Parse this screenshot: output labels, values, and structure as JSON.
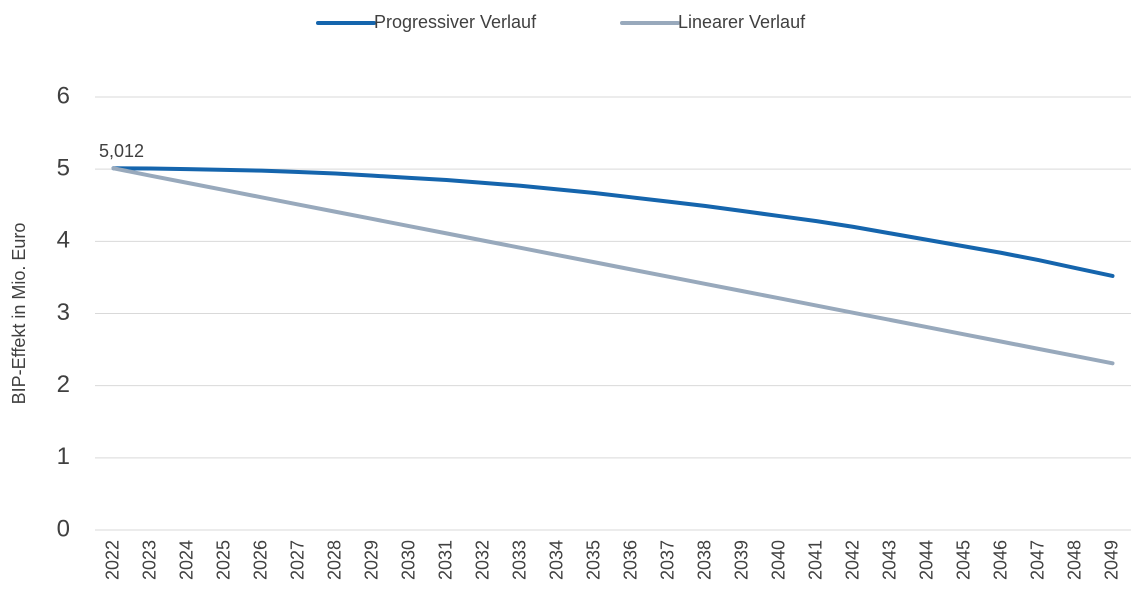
{
  "chart_data": {
    "type": "line",
    "y_label": "BIP-Effekt in Mio. Euro",
    "categories": [
      "2022",
      "2023",
      "2024",
      "2025",
      "2026",
      "2027",
      "2028",
      "2029",
      "2030",
      "2031",
      "2032",
      "2033",
      "2034",
      "2035",
      "2036",
      "2037",
      "2038",
      "2039",
      "2040",
      "2041",
      "2042",
      "2043",
      "2044",
      "2045",
      "2046",
      "2047",
      "2048",
      "2049"
    ],
    "series": [
      {
        "name": "Progressiver Verlauf",
        "color": "#1565ad",
        "values": [
          5.012,
          5.01,
          5.0,
          4.99,
          4.98,
          4.96,
          4.94,
          4.91,
          4.88,
          4.85,
          4.81,
          4.77,
          4.72,
          4.67,
          4.61,
          4.55,
          4.49,
          4.42,
          4.35,
          4.28,
          4.2,
          4.11,
          4.02,
          3.93,
          3.84,
          3.74,
          3.63,
          3.52
        ],
        "value_labels": [
          "5,012",
          null,
          null,
          null,
          null,
          null,
          null,
          null,
          null,
          null,
          null,
          null,
          null,
          null,
          null,
          null,
          null,
          null,
          null,
          null,
          null,
          null,
          null,
          null,
          null,
          null,
          null,
          null
        ]
      },
      {
        "name": "Linearer Verlauf",
        "color": "#98a9bc",
        "values": [
          5.012,
          4.91,
          4.81,
          4.71,
          4.61,
          4.51,
          4.41,
          4.31,
          4.21,
          4.11,
          4.01,
          3.91,
          3.81,
          3.71,
          3.61,
          3.51,
          3.41,
          3.31,
          3.21,
          3.11,
          3.01,
          2.91,
          2.81,
          2.71,
          2.61,
          2.51,
          2.41,
          2.31
        ]
      }
    ],
    "ylim": [
      0,
      6
    ],
    "yticks": [
      0,
      1,
      2,
      3,
      4,
      5,
      6
    ],
    "grid": true,
    "legend": "top"
  }
}
